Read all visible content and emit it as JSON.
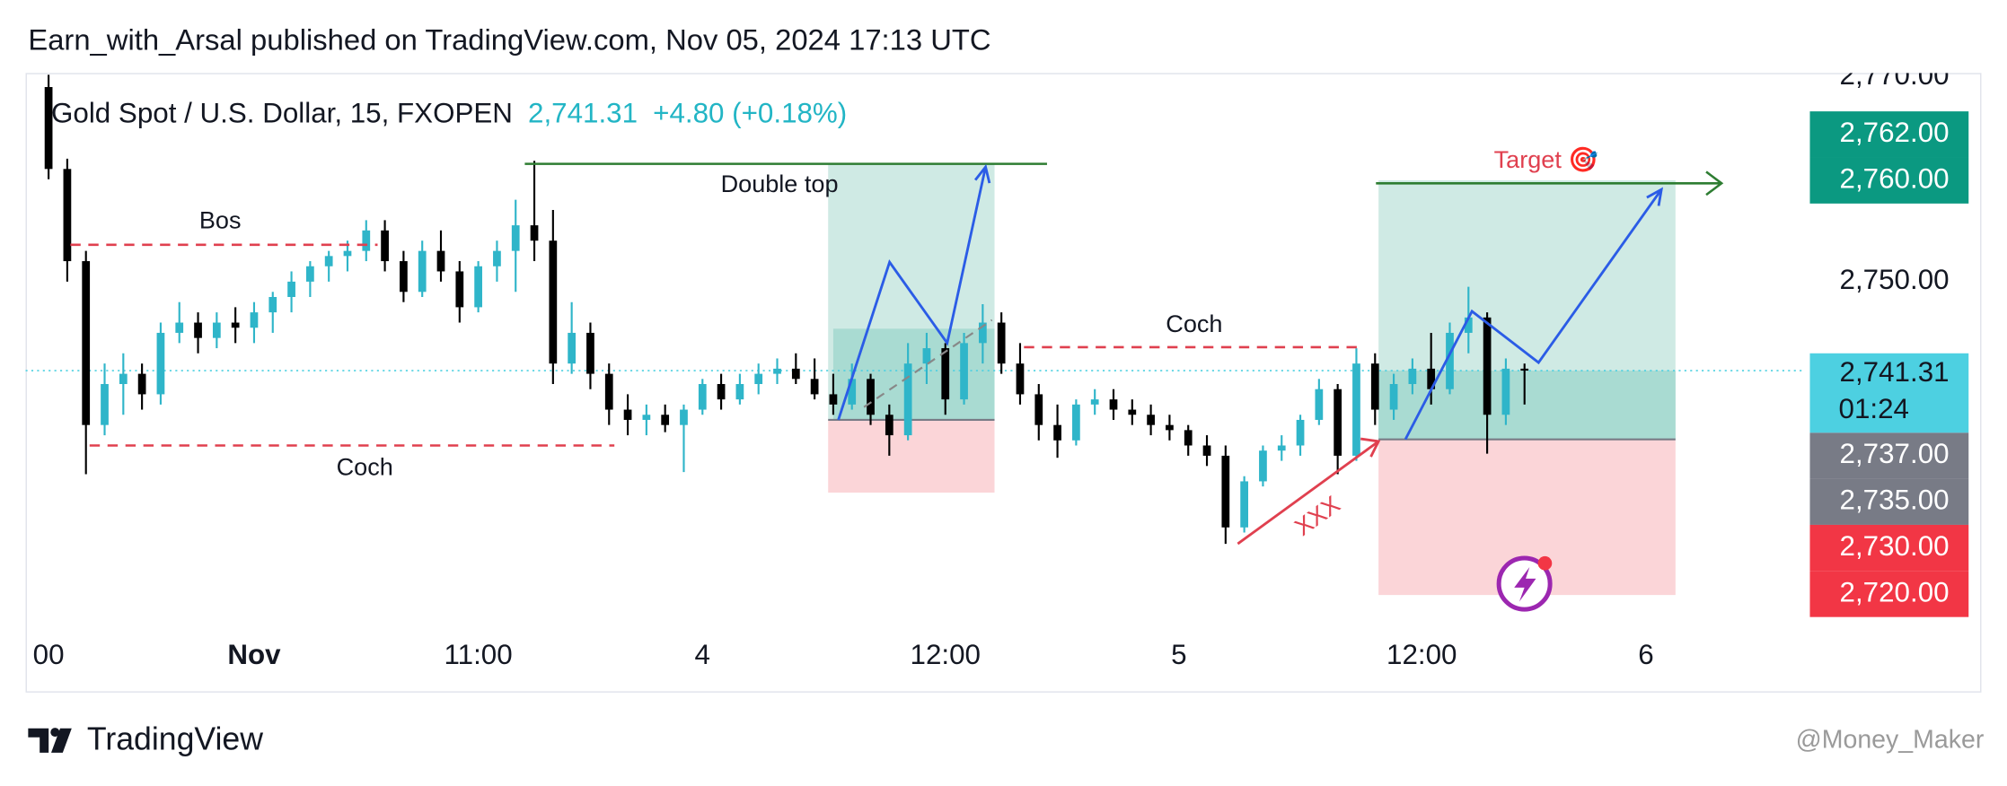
{
  "header": {
    "publisher": "Earn_with_Arsal published on TradingView.com, Nov 05, 2024 17:13 UTC",
    "symbol": "Gold Spot / U.S. Dollar, 15, FXOPEN",
    "price": "2,741.31",
    "change": "+4.80 (+0.18%)"
  },
  "chart_data": {
    "type": "candlestick",
    "x": [
      0,
      1,
      2,
      3,
      4,
      5,
      6,
      7,
      8,
      9,
      10,
      11,
      12,
      13,
      14,
      15,
      16,
      17,
      18,
      19,
      20,
      21,
      22,
      23,
      24,
      25,
      26,
      27,
      28,
      29,
      30,
      31,
      32,
      33,
      34,
      35,
      36,
      37,
      38,
      39,
      40,
      41,
      42,
      43,
      44,
      45,
      46,
      47,
      48,
      49,
      50,
      51,
      52,
      53,
      54,
      55,
      56,
      57,
      58,
      59,
      60,
      61,
      62,
      63,
      64,
      65,
      66,
      67,
      68,
      69,
      70,
      71,
      72,
      73,
      74,
      75,
      76,
      77,
      78,
      79
    ],
    "open": [
      2769,
      2761,
      2752,
      2736,
      2740,
      2741,
      2739,
      2745,
      2746,
      2744.5,
      2746,
      2745.5,
      2747,
      2748.5,
      2750,
      2751.5,
      2752.5,
      2753,
      2755,
      2752,
      2749,
      2753,
      2751,
      2747.5,
      2751.5,
      2753,
      2755.5,
      2754,
      2742,
      2745,
      2741,
      2737.5,
      2736.5,
      2737,
      2736,
      2737.5,
      2740,
      2738.5,
      2740,
      2741,
      2741.5,
      2740.5,
      2739,
      2738,
      2740.5,
      2737,
      2735,
      2742,
      2743.5,
      2738.5,
      2744,
      2746,
      2742,
      2739,
      2736,
      2734.5,
      2738,
      2738.5,
      2737.5,
      2737,
      2736,
      2735.5,
      2734,
      2733,
      2726,
      2730.5,
      2733.5,
      2734,
      2736.5,
      2739.5,
      2733,
      2742,
      2737.5,
      2740,
      2741.5,
      2739.5,
      2745,
      2746.5,
      2737,
      2741.5
    ],
    "high": [
      2770.2,
      2762,
      2753,
      2742,
      2743,
      2742,
      2746,
      2748,
      2747,
      2747,
      2747.5,
      2748,
      2749,
      2751,
      2752,
      2753,
      2754,
      2756,
      2756,
      2753,
      2754,
      2755,
      2752,
      2752,
      2754,
      2758,
      2761.8,
      2757,
      2748,
      2746,
      2742,
      2739,
      2738,
      2738,
      2738,
      2740.5,
      2741,
      2741,
      2742,
      2742.5,
      2743,
      2742.5,
      2741,
      2742,
      2741,
      2738,
      2744,
      2745,
      2744,
      2745,
      2747.8,
      2747,
      2744,
      2740,
      2738,
      2738.5,
      2739.5,
      2739.5,
      2738.5,
      2738,
      2737,
      2736,
      2735,
      2734,
      2731,
      2734,
      2735,
      2737,
      2740.5,
      2740,
      2743.5,
      2743,
      2741,
      2742.5,
      2745,
      2746,
      2749.5,
      2747,
      2742.5,
      2742
    ],
    "low": [
      2760,
      2750,
      2731.2,
      2735,
      2737,
      2737.5,
      2738,
      2744,
      2743,
      2743.5,
      2744,
      2744,
      2745,
      2747,
      2748.5,
      2750,
      2751,
      2752,
      2751,
      2748,
      2748.5,
      2750,
      2746,
      2747,
      2750,
      2749,
      2752,
      2740,
      2741,
      2739.5,
      2736,
      2735,
      2735,
      2735.3,
      2731.4,
      2737,
      2737.5,
      2738,
      2739,
      2740,
      2740,
      2738.5,
      2737,
      2737.5,
      2736,
      2733,
      2734.5,
      2740,
      2737,
      2738,
      2742,
      2741,
      2738,
      2734.5,
      2732.8,
      2734,
      2737,
      2736.5,
      2736,
      2735,
      2734.5,
      2733,
      2732,
      2724.4,
      2725.5,
      2730,
      2732.5,
      2733,
      2736,
      2731.2,
      2732.5,
      2736,
      2736.5,
      2739,
      2738,
      2739,
      2743,
      2733.2,
      2736,
      2738
    ],
    "close": [
      2761,
      2752,
      2736,
      2740,
      2741,
      2739,
      2745,
      2746,
      2744.5,
      2746,
      2745.5,
      2747,
      2748.5,
      2750,
      2751.5,
      2752.5,
      2753,
      2755,
      2752,
      2749,
      2753,
      2751,
      2747.5,
      2751.5,
      2753,
      2755.5,
      2754,
      2742,
      2745,
      2741,
      2737.5,
      2736.5,
      2737,
      2736,
      2737.5,
      2740,
      2738.5,
      2740,
      2741,
      2741.5,
      2740.5,
      2739,
      2738,
      2740.5,
      2737,
      2735,
      2742,
      2743.5,
      2738.5,
      2744,
      2746,
      2742,
      2739,
      2736,
      2734.5,
      2738,
      2738.5,
      2737.5,
      2737,
      2736,
      2735.5,
      2734,
      2733,
      2726,
      2730.5,
      2733.5,
      2734,
      2736.5,
      2739.5,
      2733,
      2742,
      2737.5,
      2740,
      2741.5,
      2739.5,
      2745,
      2746.5,
      2737,
      2741.5,
      2741.31
    ],
    "up_color": "#2fb5c9",
    "down_color": "#000000",
    "xlim": [
      -1.23,
      94
    ],
    "ylim": [
      2716.25,
      2770.375
    ],
    "xticks": [
      {
        "value": 0,
        "label": "00"
      },
      {
        "value": 11,
        "label": "Nov"
      },
      {
        "value": 23,
        "label": "11:00"
      },
      {
        "value": 35,
        "label": "4"
      },
      {
        "value": 48,
        "label": "12:00"
      },
      {
        "value": 60.5,
        "label": "5"
      },
      {
        "value": 73.5,
        "label": "12:00"
      },
      {
        "value": 85.5,
        "label": "6"
      }
    ],
    "yticks": [
      {
        "value": 2770,
        "label": "2,770.00"
      },
      {
        "value": 2750,
        "label": "2,750.00"
      }
    ],
    "last_price": {
      "value": 2741.31,
      "label": "2,741.31",
      "countdown": "01:24",
      "color": "#4dd0e1"
    },
    "price_badges": [
      {
        "value": 2762,
        "label": "2,762.00",
        "color": "#0b9981"
      },
      {
        "value": 2760,
        "label": "2,760.00",
        "color": "#0b9981"
      },
      {
        "value": 2737,
        "label": "2,737.00",
        "color": "#787b86"
      },
      {
        "value": 2735,
        "label": "2,735.00",
        "color": "#787b86"
      },
      {
        "value": 2730,
        "label": "2,730.00",
        "color": "#f23645"
      },
      {
        "value": 2720,
        "label": "2,720.00",
        "color": "#f23645"
      }
    ],
    "levels": [
      {
        "name": "Bos",
        "value": 2753.6,
        "color": "#e0404f"
      },
      {
        "name": "Coch",
        "value": 2734,
        "color": "#e0404f"
      },
      {
        "name": "Double top",
        "value": 2761.5,
        "color": "#2e7d32"
      },
      {
        "name": "Coch",
        "value": 2743.6,
        "color": "#e0404f"
      },
      {
        "name": "Target 🎯",
        "value": 2759.6,
        "color": "#2e7d32"
      }
    ],
    "positions": [
      {
        "target": 2761.5,
        "entry": 2736.5,
        "stop": 2729.4,
        "shade": 2745.4
      },
      {
        "target": 2759.9,
        "entry": 2734.6,
        "stop": 2719.4
      }
    ],
    "projections": [
      [
        2736.5,
        2751.9,
        2744,
        2761.2
      ],
      [
        2734.6,
        2747.1,
        2742.1,
        2759
      ]
    ],
    "trendline": [
      2737.75,
      2746.25
    ],
    "arrow": {
      "label": "XXX",
      "from": 2724.4,
      "to": 2734.4
    }
  },
  "footer": {
    "brand": "TradingView",
    "watermark": "@Money_Maker"
  }
}
